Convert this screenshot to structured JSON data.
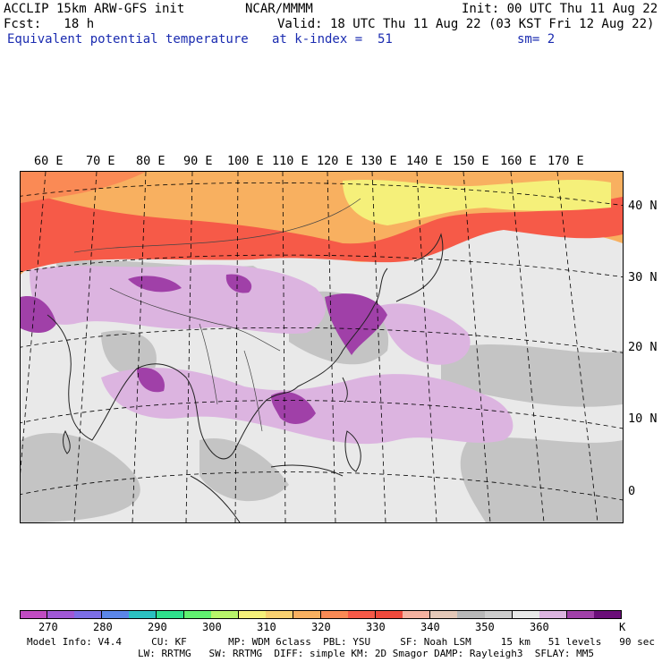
{
  "header": {
    "model": "ACCLIP 15km ARW-GFS init",
    "org": "NCAR/MMMM",
    "init": "Init: 00 UTC Thu 11 Aug 22",
    "fcst": "Fcst:   18 h",
    "valid": "Valid: 18 UTC Thu 11 Aug 22 (03 KST Fri 12 Aug 22)",
    "field": "Equivalent potential temperature",
    "level": "at k-index =  51",
    "smooth": "sm= 2"
  },
  "map": {
    "lon_labels": [
      "60 E",
      "70 E",
      "80 E",
      "90 E",
      "100 E",
      "110 E",
      "120 E",
      "130 E",
      "140 E",
      "150 E",
      "160 E",
      "170 E"
    ],
    "lat_labels": [
      "40 N",
      "30 N",
      "20 N",
      "10 N",
      "0"
    ]
  },
  "colorbar": {
    "colors": [
      "#c04bc2",
      "#a058d6",
      "#7c6ee6",
      "#5b86e8",
      "#2bc1c0",
      "#2fe08c",
      "#60f070",
      "#b8f56a",
      "#f5f07a",
      "#f8d070",
      "#f8b060",
      "#fa8a55",
      "#f65a48",
      "#ef4a3c",
      "#f5b2a0",
      "#e4c8b8",
      "#b8b8b8",
      "#cccccc",
      "#e8e8e8",
      "#dcb4e0",
      "#a040a8",
      "#6a0e78"
    ],
    "labels": [
      "270",
      "280",
      "290",
      "300",
      "310",
      "320",
      "330",
      "340",
      "350",
      "360",
      "K"
    ]
  },
  "footer": {
    "line1": "Model Info: V4.4     CU: KF       MP: WDM 6class  PBL: YSU     SF: Noah LSM     15 km   51 levels   90 sec",
    "line2": "LW: RRTMG   SW: RRTMG  DIFF: simple KM: 2D Smagor DAMP: Rayleigh3  SFLAY: MM5"
  }
}
